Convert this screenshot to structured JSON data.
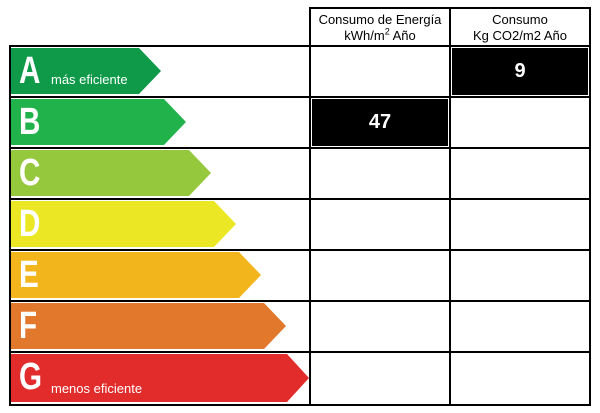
{
  "header": {
    "energy_line1": "Consumo de Energía",
    "energy_unit": "kWh/m",
    "energy_sup": "2",
    "energy_year": " Año",
    "co2_line1": "Consumo",
    "co2_line2": "Kg CO2/m2 Año"
  },
  "classes": [
    {
      "letter": "A",
      "label": "más eficiente",
      "color": "#0e9a48"
    },
    {
      "letter": "B",
      "label": "",
      "color": "#22b24c"
    },
    {
      "letter": "C",
      "label": "",
      "color": "#96c83d"
    },
    {
      "letter": "D",
      "label": "",
      "color": "#ebe725"
    },
    {
      "letter": "E",
      "label": "",
      "color": "#f2b51c"
    },
    {
      "letter": "F",
      "label": "",
      "color": "#e2782b"
    },
    {
      "letter": "G",
      "label": "menos eficiente",
      "color": "#e22b2b"
    }
  ],
  "ratings": {
    "energy_class": "B",
    "energy_value": "47",
    "co2_class": "A",
    "co2_value": "9"
  }
}
